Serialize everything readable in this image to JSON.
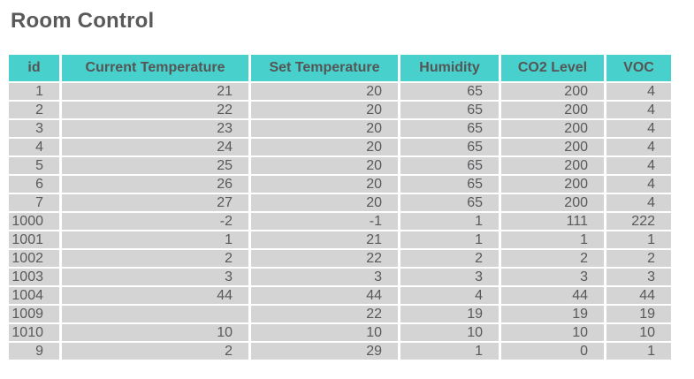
{
  "page": {
    "title": "Room Control"
  },
  "table": {
    "columns": [
      "id",
      "Current Temperature",
      "Set Temperature",
      "Humidity",
      "CO2 Level",
      "VOC"
    ],
    "rows": [
      [
        "1",
        "21",
        "20",
        "65",
        "200",
        "4"
      ],
      [
        "2",
        "22",
        "20",
        "65",
        "200",
        "4"
      ],
      [
        "3",
        "23",
        "20",
        "65",
        "200",
        "4"
      ],
      [
        "4",
        "24",
        "20",
        "65",
        "200",
        "4"
      ],
      [
        "5",
        "25",
        "20",
        "65",
        "200",
        "4"
      ],
      [
        "6",
        "26",
        "20",
        "65",
        "200",
        "4"
      ],
      [
        "7",
        "27",
        "20",
        "65",
        "200",
        "4"
      ],
      [
        "1000",
        "-2",
        "-1",
        "1",
        "111",
        "222"
      ],
      [
        "1001",
        "1",
        "21",
        "1",
        "1",
        "1"
      ],
      [
        "1002",
        "2",
        "22",
        "2",
        "2",
        "2"
      ],
      [
        "1003",
        "3",
        "3",
        "3",
        "3",
        "3"
      ],
      [
        "1004",
        "44",
        "44",
        "4",
        "44",
        "44"
      ],
      [
        "1009",
        "",
        "22",
        "19",
        "19",
        "19"
      ],
      [
        "1010",
        "10",
        "10",
        "10",
        "10",
        "10"
      ],
      [
        "9",
        "2",
        "29",
        "1",
        "0",
        "1"
      ]
    ]
  },
  "colors": {
    "header_bg": "#48d1cc",
    "row_bg": "#d4d4d4",
    "cell_text": "#58595b",
    "title_text": "#595959"
  }
}
